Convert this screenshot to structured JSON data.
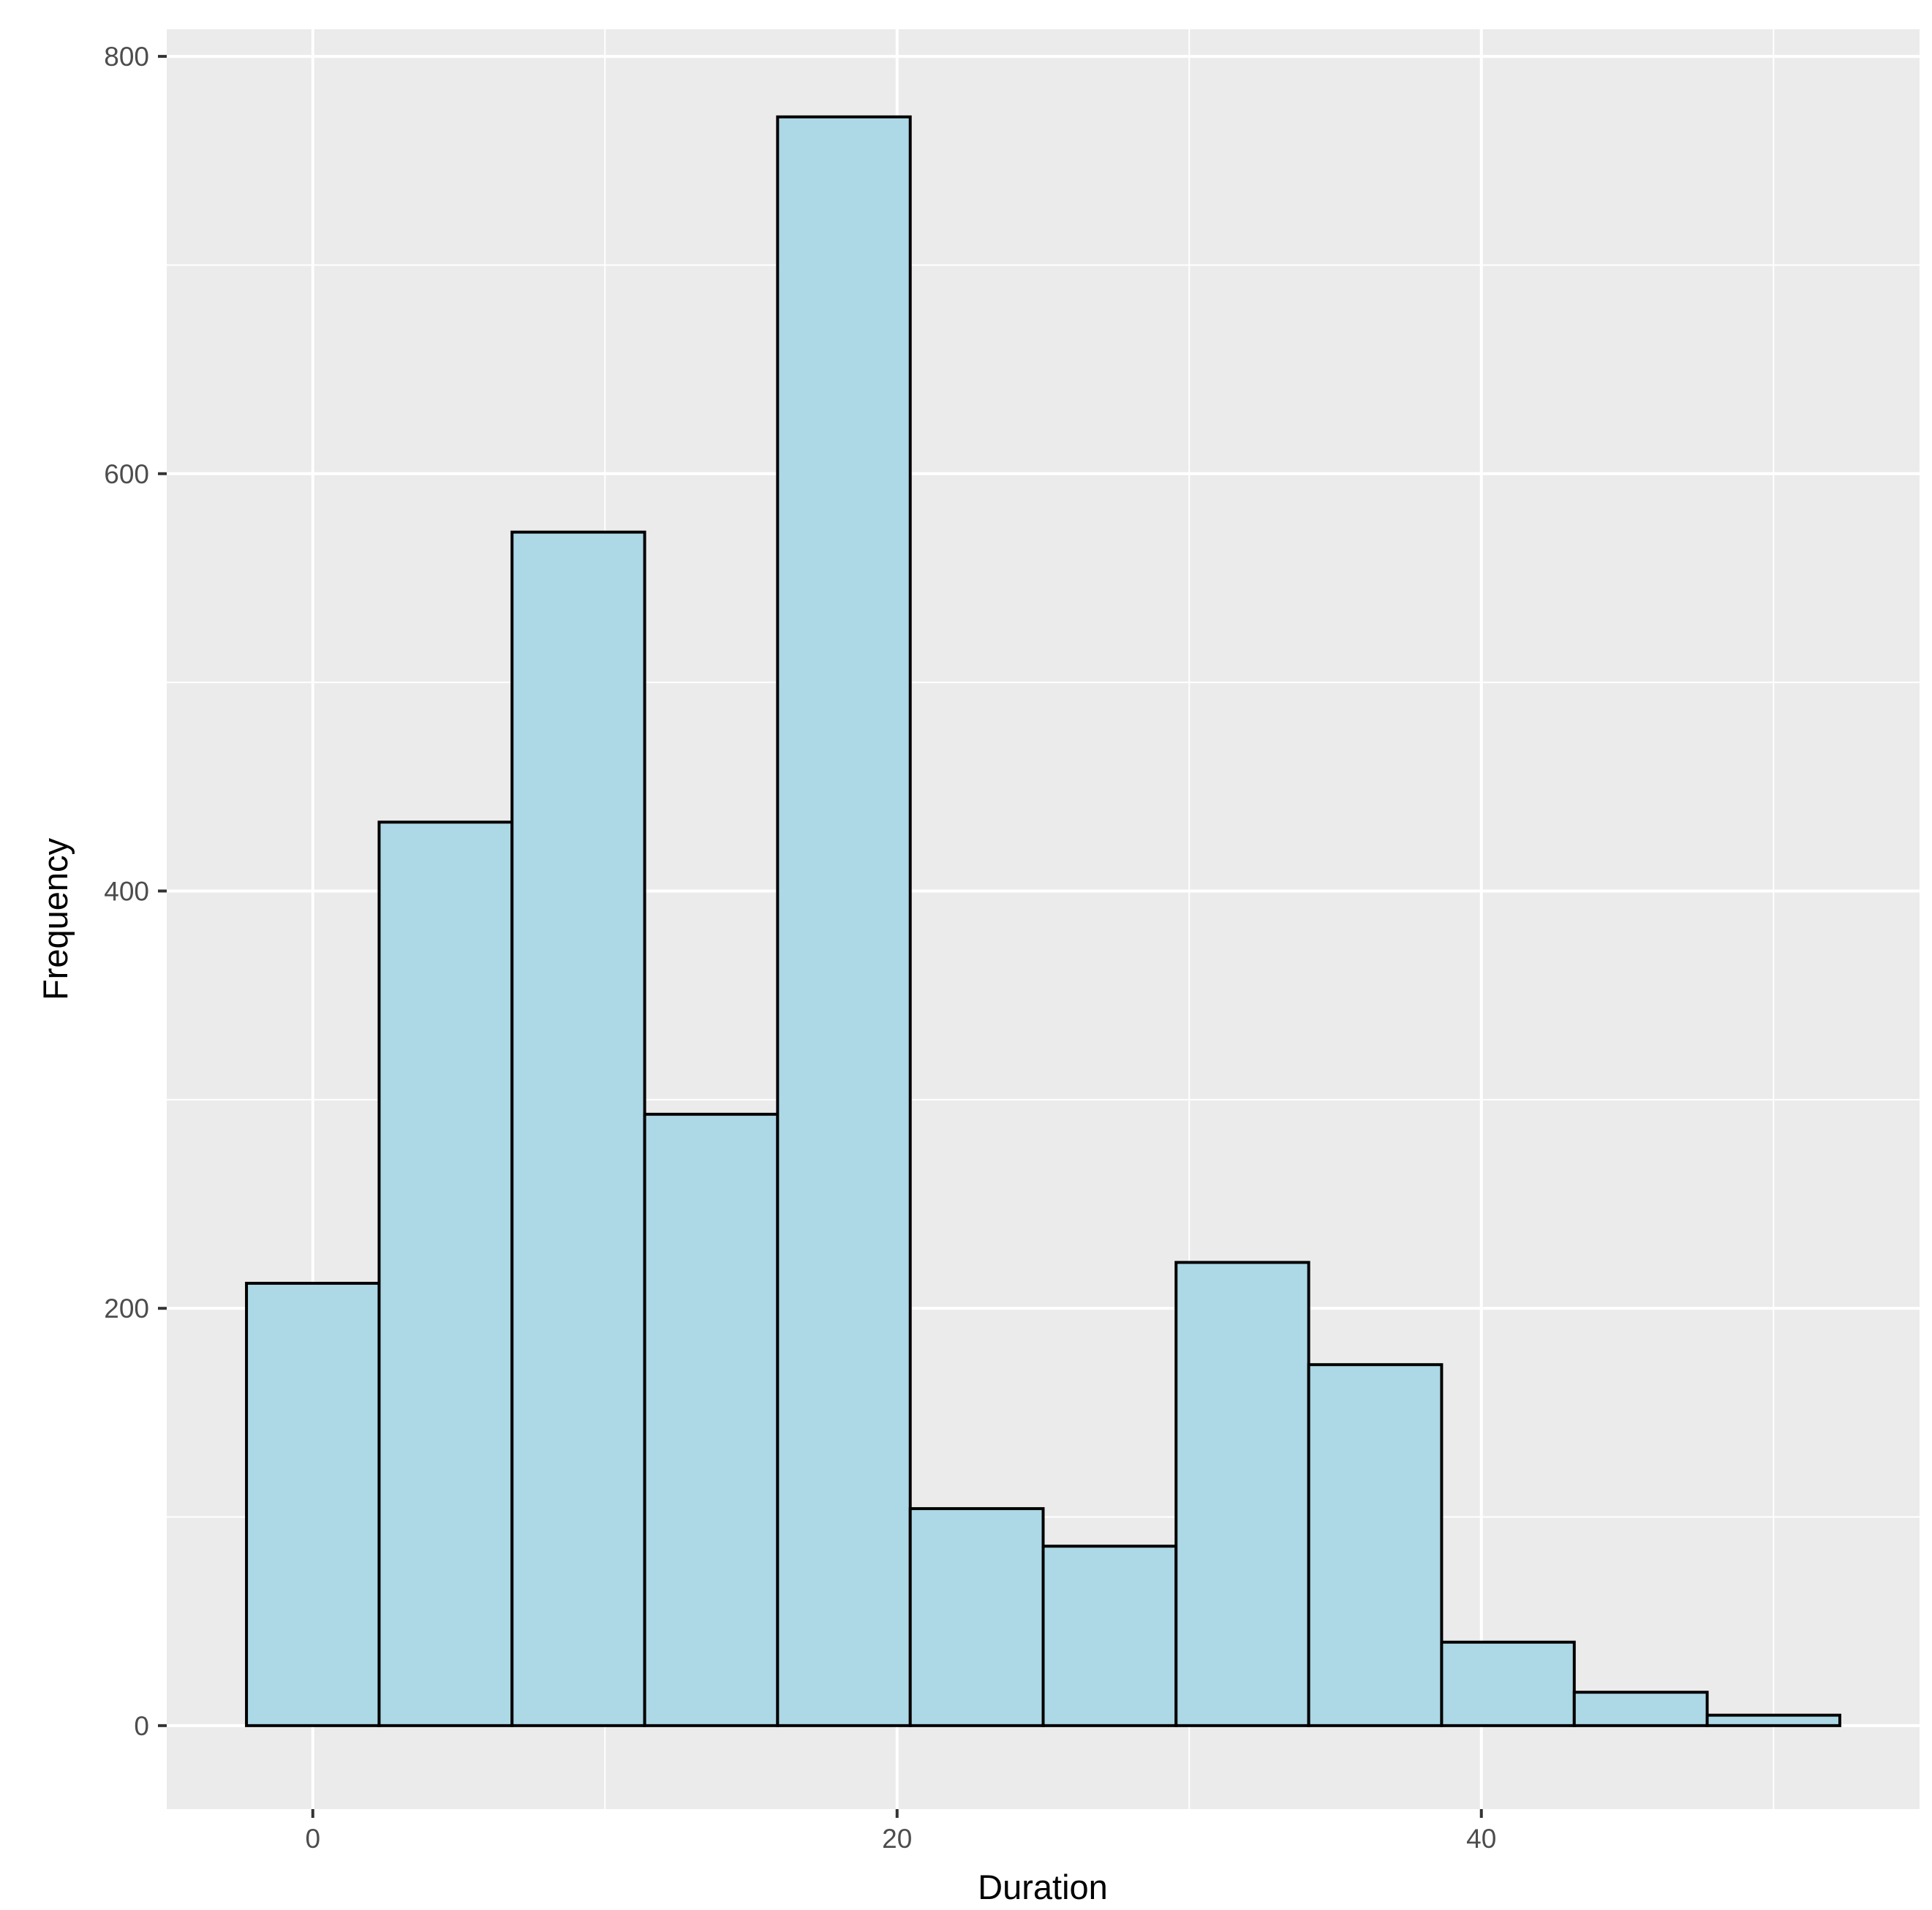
{
  "chart_data": {
    "type": "histogram",
    "xlabel": "Duration",
    "ylabel": "Frequency",
    "xlim": [
      -5,
      55
    ],
    "ylim": [
      -40,
      813
    ],
    "x_ticks": [
      0,
      20,
      40
    ],
    "x_minor_ticks": [
      10,
      30,
      50
    ],
    "y_ticks": [
      0,
      200,
      400,
      600,
      800
    ],
    "y_minor_ticks": [
      100,
      300,
      500,
      700
    ],
    "bins": [
      {
        "x0": -2.27,
        "x1": 2.27,
        "count": 212
      },
      {
        "x0": 2.27,
        "x1": 6.82,
        "count": 433
      },
      {
        "x0": 6.82,
        "x1": 11.36,
        "count": 572
      },
      {
        "x0": 11.36,
        "x1": 15.91,
        "count": 293
      },
      {
        "x0": 15.91,
        "x1": 20.45,
        "count": 771
      },
      {
        "x0": 20.45,
        "x1": 25.0,
        "count": 104
      },
      {
        "x0": 25.0,
        "x1": 29.55,
        "count": 86
      },
      {
        "x0": 29.55,
        "x1": 34.09,
        "count": 222
      },
      {
        "x0": 34.09,
        "x1": 38.64,
        "count": 173
      },
      {
        "x0": 38.64,
        "x1": 43.18,
        "count": 40
      },
      {
        "x0": 43.18,
        "x1": 47.73,
        "count": 16
      },
      {
        "x0": 47.73,
        "x1": 52.27,
        "count": 5
      }
    ],
    "grid": true,
    "legend": "none"
  },
  "colors": {
    "panel_background": "#ebebeb",
    "grid_line": "#ffffff",
    "bar_fill": "#add8e6",
    "bar_outline": "#000000",
    "tick_mark": "#333333",
    "tick_label": "#4d4d4d"
  }
}
